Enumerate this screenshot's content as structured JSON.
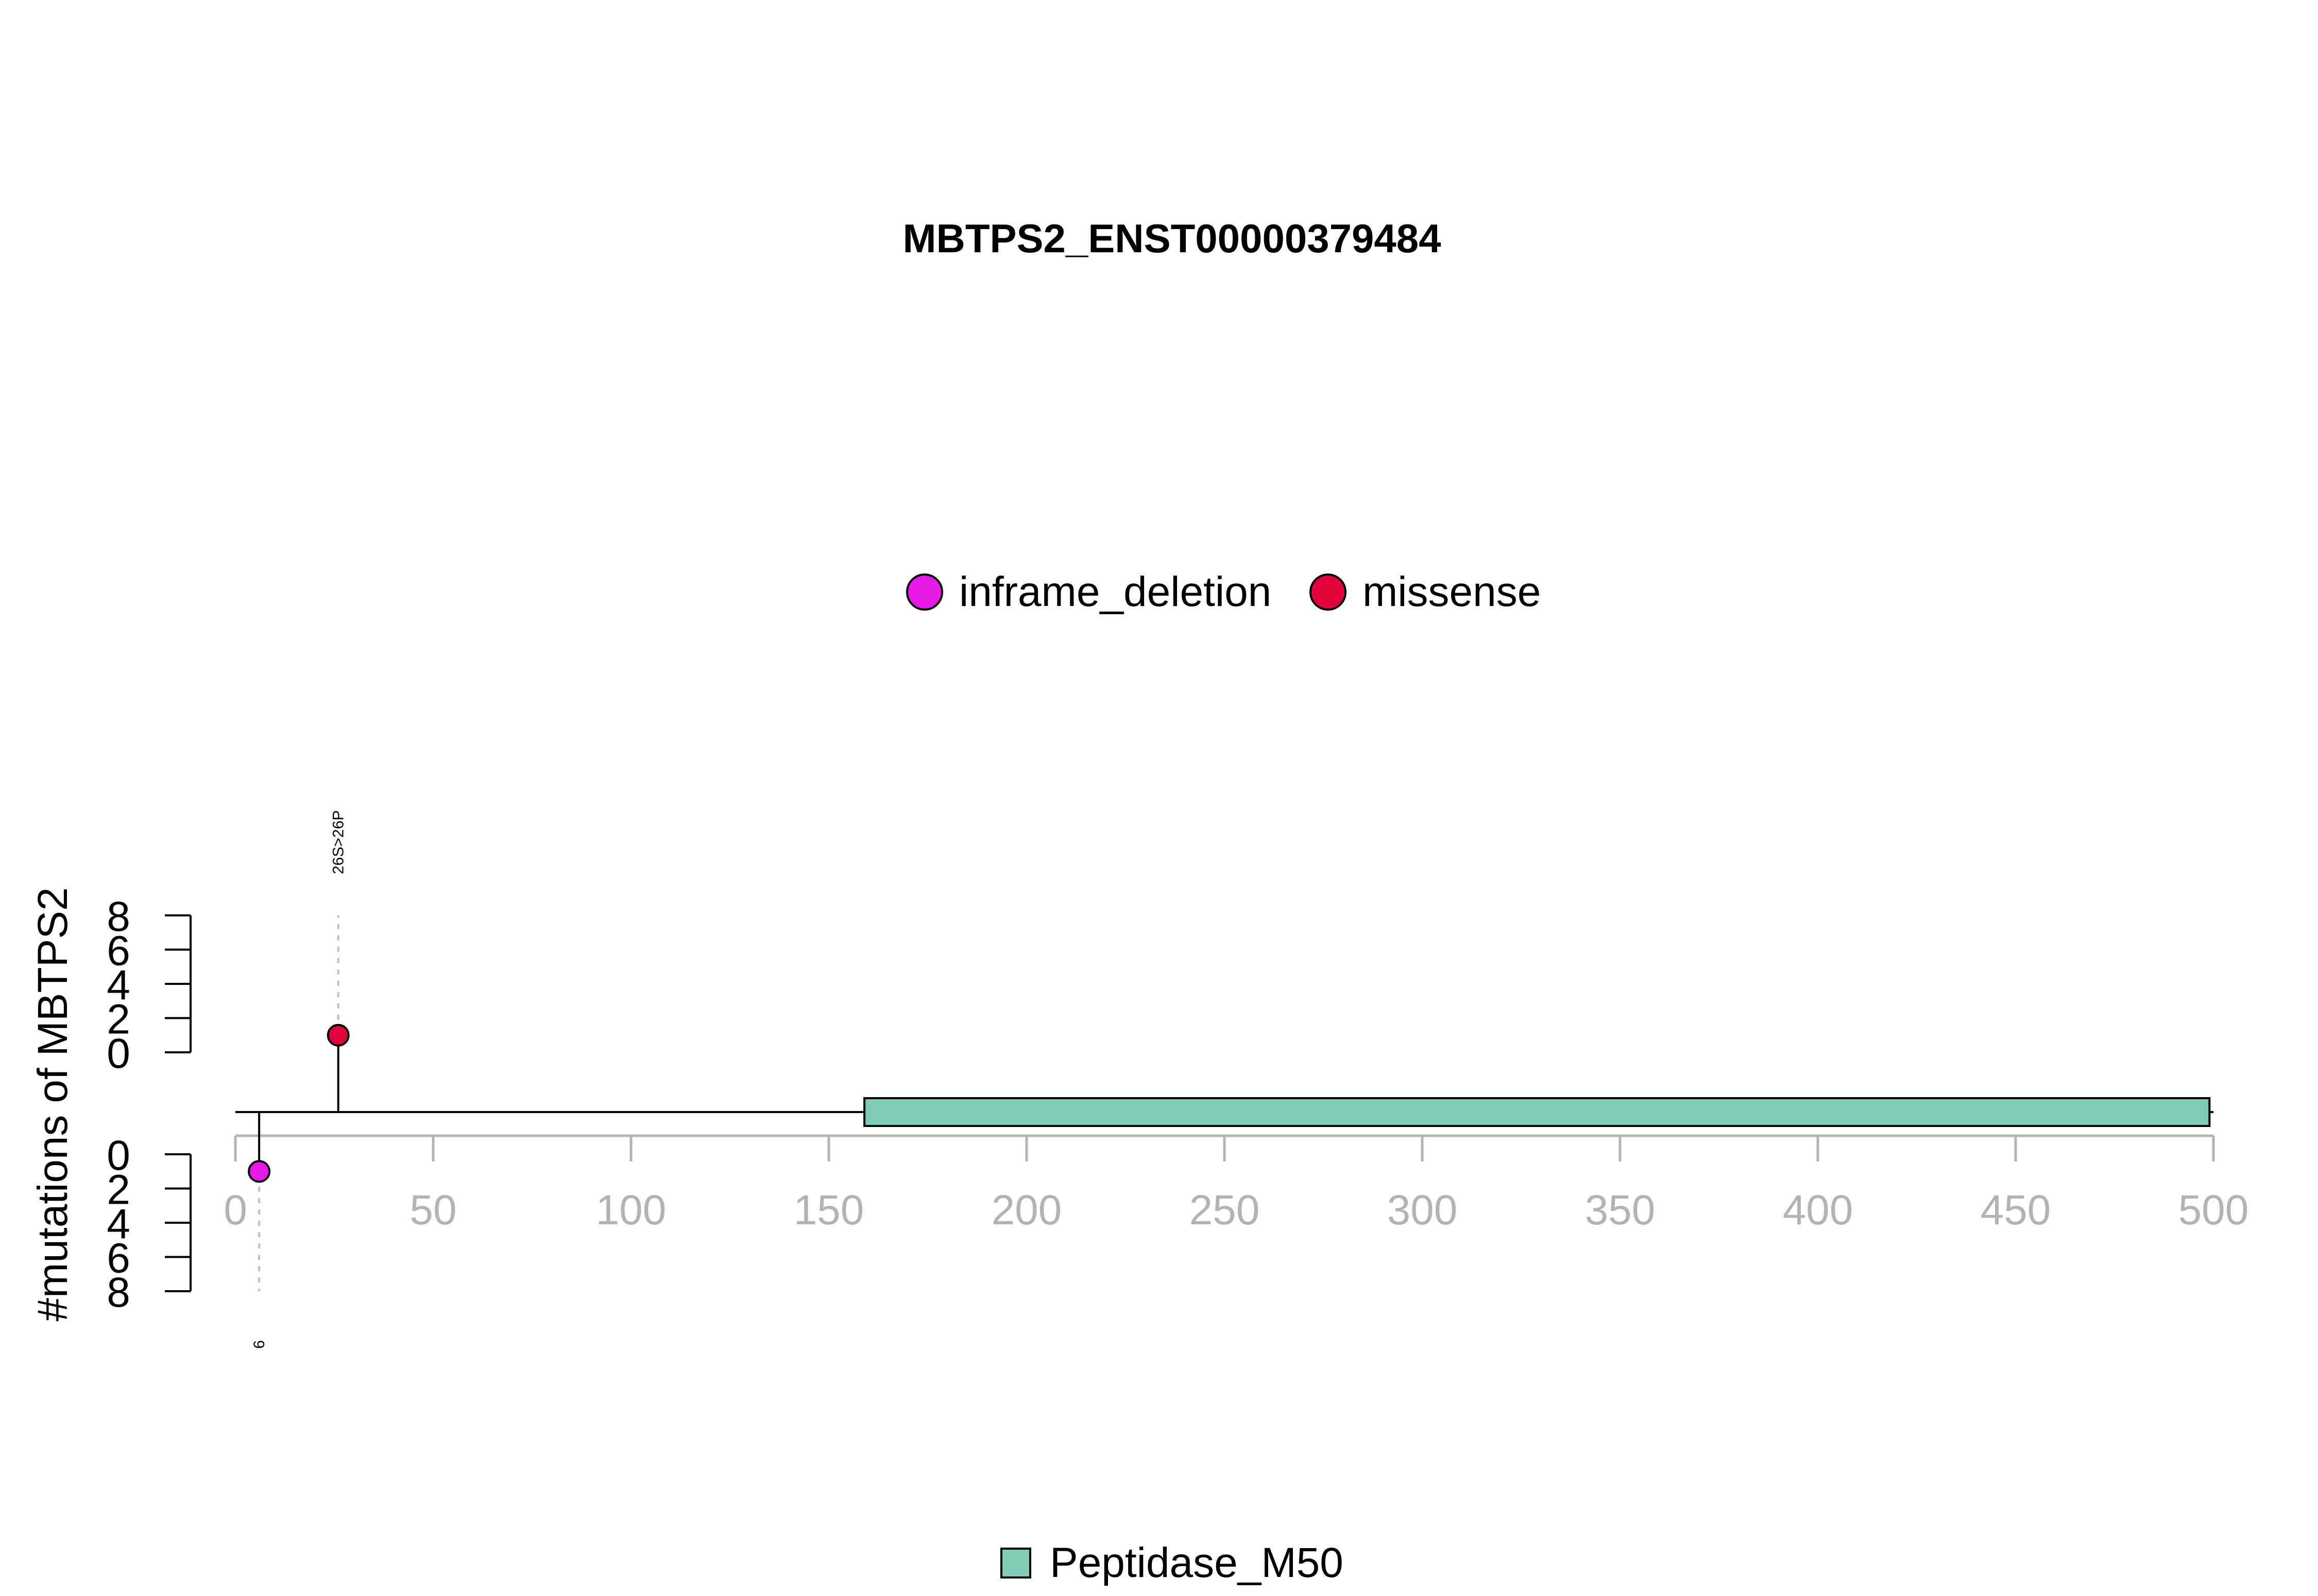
{
  "chart_data": {
    "type": "lollipop",
    "title": "MBTPS2_ENST00000379484",
    "ylabel": "#mutations of MBTPS2",
    "xlim": [
      0,
      500
    ],
    "x_ticks": [
      0,
      50,
      100,
      150,
      200,
      250,
      300,
      350,
      400,
      450,
      500
    ],
    "y_ticks_top": [
      0,
      2,
      4,
      6,
      8
    ],
    "y_ticks_bottom": [
      0,
      2,
      4,
      6,
      8
    ],
    "ylim": [
      0,
      8
    ],
    "protein_length": 500,
    "legend_mutation_types": [
      {
        "label": "inframe_deletion",
        "color": "#e619e6"
      },
      {
        "label": "missense",
        "color": "#e0003c"
      }
    ],
    "mutations": [
      {
        "position": 26,
        "count": 1,
        "type": "missense",
        "color": "#e0003c",
        "side": "top",
        "label": "26S>26P"
      },
      {
        "position": 6,
        "count": 1,
        "type": "inframe_deletion",
        "color": "#e619e6",
        "side": "bottom",
        "label": "6"
      }
    ],
    "domains": [
      {
        "name": "Peptidase_M50",
        "start": 159,
        "end": 499,
        "color": "#7fcbb8"
      }
    ],
    "legend_domains": [
      {
        "label": "Peptidase_M50",
        "color": "#7fcbb8"
      }
    ],
    "axis_color": "#b3b3b3"
  }
}
